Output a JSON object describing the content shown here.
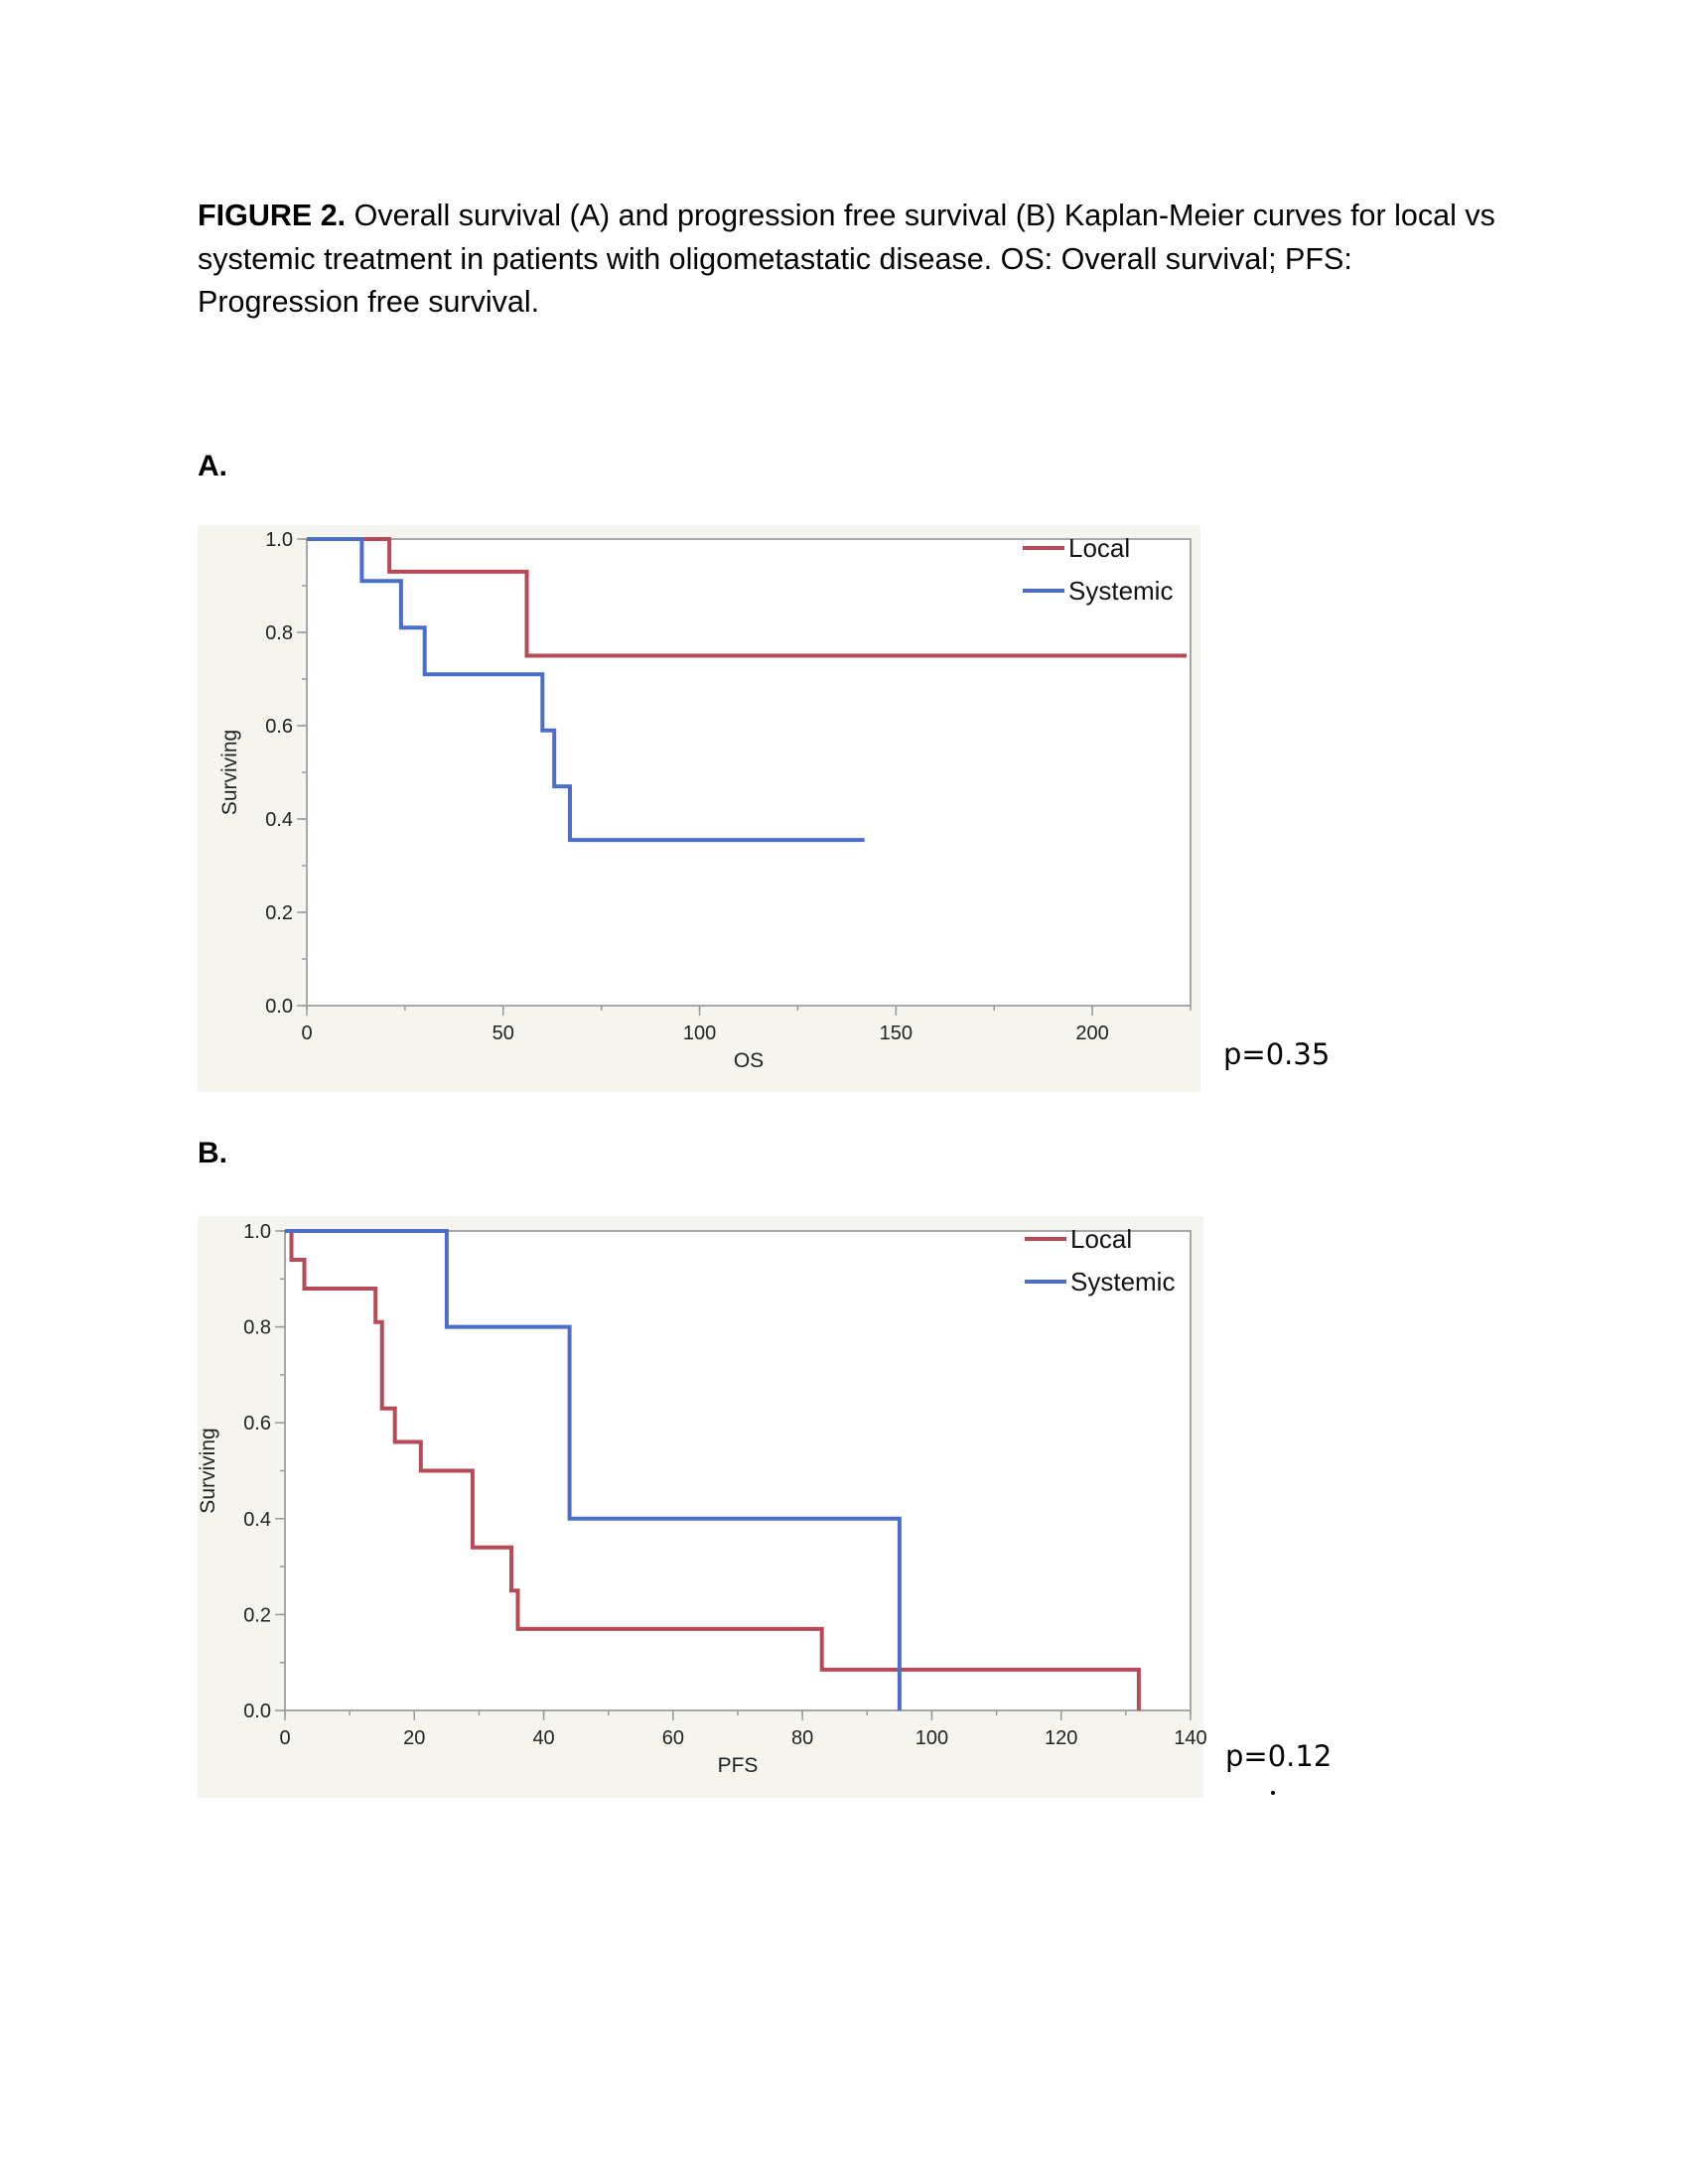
{
  "caption": {
    "label": "FIGURE 2.",
    "text": " Overall survival (A) and progression free survival (B) Kaplan-Meier curves for local vs systemic treatment in patients with oligometastatic disease. OS: Overall survival; PFS: Progression free survival."
  },
  "panels": [
    {
      "label": "A.",
      "p_value": "p=0.35"
    },
    {
      "label": "B.",
      "p_value": "p=0.12"
    }
  ],
  "colors": {
    "local": "#b84a57",
    "systemic": "#4a6fcb",
    "axis": "#9a9a9a",
    "plot_bg": "#f5f4ef"
  },
  "chart_data": [
    {
      "type": "line",
      "subtype": "kaplan-meier step",
      "xlabel": "OS",
      "ylabel": "Surviving",
      "xlim": [
        0,
        225
      ],
      "ylim": [
        0,
        1.0
      ],
      "xticks": [
        0,
        50,
        100,
        150,
        200
      ],
      "yticks": [
        0.0,
        0.2,
        0.4,
        0.6,
        0.8,
        1.0
      ],
      "x_minor_step": 25,
      "y_minor_step": 0.1,
      "grid": false,
      "legend_position": "top-right outside",
      "series": [
        {
          "name": "Local",
          "color": "#b84a57",
          "points": [
            [
              0,
              1.0
            ],
            [
              21,
              1.0
            ],
            [
              21,
              0.93
            ],
            [
              56,
              0.93
            ],
            [
              56,
              0.75
            ],
            [
              224,
              0.75
            ]
          ]
        },
        {
          "name": "Systemic",
          "color": "#4a6fcb",
          "points": [
            [
              0,
              1.0
            ],
            [
              14,
              1.0
            ],
            [
              14,
              0.91
            ],
            [
              24,
              0.91
            ],
            [
              24,
              0.81
            ],
            [
              30,
              0.81
            ],
            [
              30,
              0.71
            ],
            [
              60,
              0.71
            ],
            [
              60,
              0.59
            ],
            [
              63,
              0.59
            ],
            [
              63,
              0.47
            ],
            [
              67,
              0.47
            ],
            [
              67,
              0.355
            ],
            [
              142,
              0.355
            ]
          ]
        }
      ]
    },
    {
      "type": "line",
      "subtype": "kaplan-meier step",
      "xlabel": "PFS",
      "ylabel": "Surviving",
      "xlim": [
        0,
        140
      ],
      "ylim": [
        0,
        1.0
      ],
      "xticks": [
        0,
        20,
        40,
        60,
        80,
        100,
        120,
        140
      ],
      "yticks": [
        0.0,
        0.2,
        0.4,
        0.6,
        0.8,
        1.0
      ],
      "x_minor_step": 10,
      "y_minor_step": 0.1,
      "grid": false,
      "legend_position": "top-right outside",
      "series": [
        {
          "name": "Local",
          "color": "#b84a57",
          "points": [
            [
              0,
              1.0
            ],
            [
              1,
              1.0
            ],
            [
              1,
              0.94
            ],
            [
              3,
              0.94
            ],
            [
              3,
              0.88
            ],
            [
              14,
              0.88
            ],
            [
              14,
              0.81
            ],
            [
              15,
              0.81
            ],
            [
              15,
              0.63
            ],
            [
              17,
              0.63
            ],
            [
              17,
              0.56
            ],
            [
              21,
              0.56
            ],
            [
              21,
              0.5
            ],
            [
              29,
              0.5
            ],
            [
              29,
              0.34
            ],
            [
              35,
              0.34
            ],
            [
              35,
              0.25
            ],
            [
              36,
              0.25
            ],
            [
              36,
              0.17
            ],
            [
              83,
              0.17
            ],
            [
              83,
              0.085
            ],
            [
              132,
              0.085
            ],
            [
              132,
              0.0
            ]
          ]
        },
        {
          "name": "Systemic",
          "color": "#4a6fcb",
          "points": [
            [
              0,
              1.0
            ],
            [
              25,
              1.0
            ],
            [
              25,
              0.8
            ],
            [
              44,
              0.8
            ],
            [
              44,
              0.4
            ],
            [
              95,
              0.4
            ],
            [
              95,
              0.0
            ]
          ]
        }
      ]
    }
  ]
}
